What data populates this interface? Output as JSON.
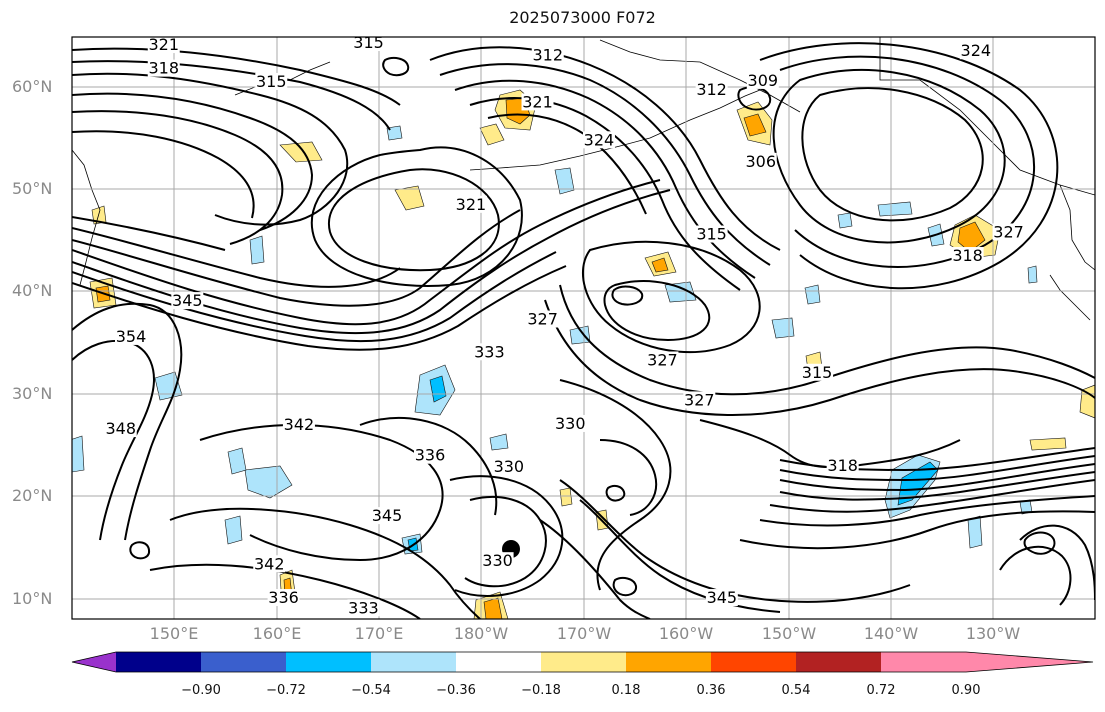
{
  "title": "2025073000 F072",
  "map": {
    "lat_ticks": [
      {
        "label": "60°N",
        "lat": 60
      },
      {
        "label": "50°N",
        "lat": 50
      },
      {
        "label": "40°N",
        "lat": 40
      },
      {
        "label": "30°N",
        "lat": 30
      },
      {
        "label": "20°N",
        "lat": 20
      },
      {
        "label": "10°N",
        "lat": 10
      }
    ],
    "lon_ticks": [
      {
        "label": "150°E",
        "lon": 150
      },
      {
        "label": "160°E",
        "lon": 160
      },
      {
        "label": "170°E",
        "lon": 170
      },
      {
        "label": "180°W",
        "lon": 180
      },
      {
        "label": "170°W",
        "lon": 190
      },
      {
        "label": "160°W",
        "lon": 200
      },
      {
        "label": "150°W",
        "lon": 210
      },
      {
        "label": "140°W",
        "lon": 220
      },
      {
        "label": "130°W",
        "lon": 230
      }
    ],
    "contour_labels": [
      {
        "text": "321",
        "lon": 149,
        "lat": 63.8
      },
      {
        "text": "318",
        "lon": 149,
        "lat": 61.5
      },
      {
        "text": "315",
        "lon": 159.5,
        "lat": 60.2
      },
      {
        "text": "315",
        "lon": 169,
        "lat": 64
      },
      {
        "text": "312",
        "lon": 186.5,
        "lat": 62.8
      },
      {
        "text": "321",
        "lon": 185.5,
        "lat": 58.2
      },
      {
        "text": "324",
        "lon": 191.5,
        "lat": 54.5
      },
      {
        "text": "309",
        "lon": 207.5,
        "lat": 60.3
      },
      {
        "text": "312",
        "lon": 202.5,
        "lat": 59.4
      },
      {
        "text": "324",
        "lon": 228.3,
        "lat": 63.2
      },
      {
        "text": "306",
        "lon": 207.3,
        "lat": 52.4
      },
      {
        "text": "315",
        "lon": 202.5,
        "lat": 45.3
      },
      {
        "text": "318",
        "lon": 227.5,
        "lat": 43.2
      },
      {
        "text": "327",
        "lon": 231.5,
        "lat": 45.5
      },
      {
        "text": "321",
        "lon": 179,
        "lat": 48.2
      },
      {
        "text": "345",
        "lon": 151.3,
        "lat": 38.8
      },
      {
        "text": "354",
        "lon": 145.8,
        "lat": 35.3
      },
      {
        "text": "348",
        "lon": 144.8,
        "lat": 26.3
      },
      {
        "text": "342",
        "lon": 162.2,
        "lat": 26.7
      },
      {
        "text": "327",
        "lon": 186,
        "lat": 37
      },
      {
        "text": "333",
        "lon": 180.8,
        "lat": 33.8
      },
      {
        "text": "327",
        "lon": 197.7,
        "lat": 33
      },
      {
        "text": "327",
        "lon": 201.3,
        "lat": 29.1
      },
      {
        "text": "315",
        "lon": 212.8,
        "lat": 31.8
      },
      {
        "text": "330",
        "lon": 188.7,
        "lat": 26.8
      },
      {
        "text": "336",
        "lon": 175,
        "lat": 23.7
      },
      {
        "text": "330",
        "lon": 182.7,
        "lat": 22.6
      },
      {
        "text": "318",
        "lon": 215.3,
        "lat": 22.7
      },
      {
        "text": "345",
        "lon": 170.8,
        "lat": 17.8
      },
      {
        "text": "330",
        "lon": 181.6,
        "lat": 13.4
      },
      {
        "text": "342",
        "lon": 159.3,
        "lat": 13.1
      },
      {
        "text": "336",
        "lon": 160.7,
        "lat": 9.8
      },
      {
        "text": "333",
        "lon": 168.5,
        "lat": 8.8
      },
      {
        "text": "345",
        "lon": 203.5,
        "lat": 9.8
      }
    ]
  },
  "colorbar": {
    "labels": [
      "−0.90",
      "−0.72",
      "−0.54",
      "−0.36",
      "−0.18",
      "0.18",
      "0.36",
      "0.54",
      "0.72",
      "0.90"
    ],
    "colors": [
      "#9932cc",
      "#00008b",
      "#3a5fcd",
      "#00bfff",
      "#aee4fb",
      "#ffffff",
      "#ffeb8a",
      "#ffa500",
      "#ff4500",
      "#b22222",
      "#ff88aa"
    ]
  }
}
